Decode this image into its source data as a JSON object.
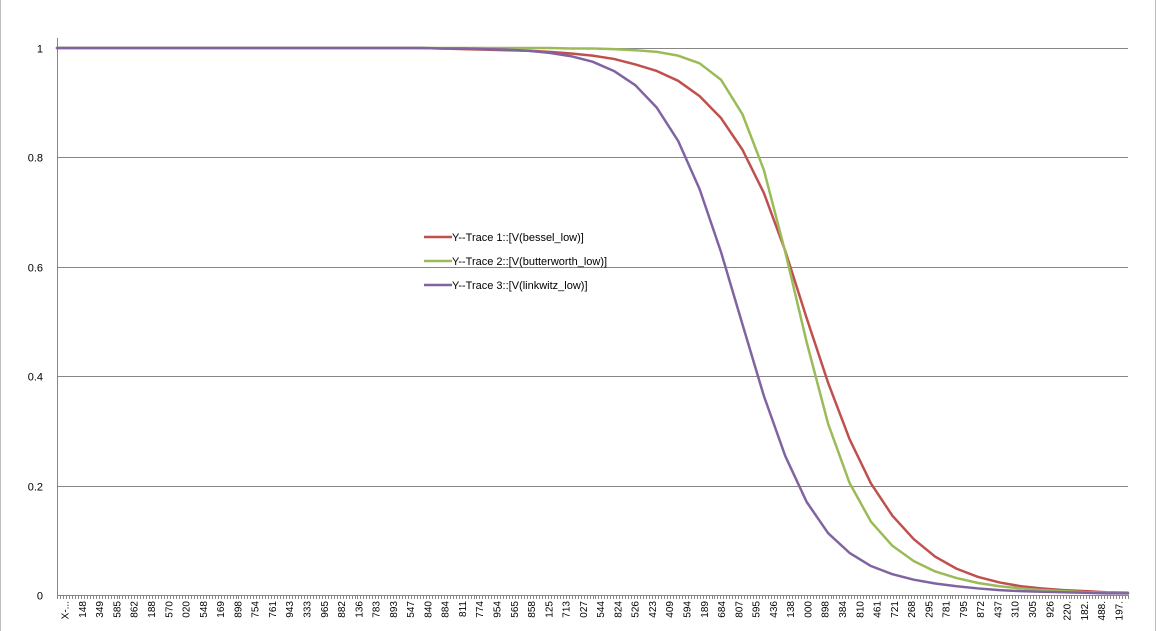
{
  "chart_data": {
    "type": "line",
    "title": "",
    "xlabel": "",
    "ylabel": "",
    "ylim": [
      0,
      1
    ],
    "yticks": [
      0,
      0.2,
      0.4,
      0.6,
      0.8,
      1
    ],
    "ytick_labels": [
      "0",
      "0.2",
      "0.4",
      "0.6",
      "0.8",
      "1"
    ],
    "grid": "horizontal",
    "legend_placement": "center-left",
    "xtick_labels": [
      "X-...",
      "148",
      "349",
      "585",
      "862",
      "188",
      "570",
      "020",
      "548",
      "169",
      "898",
      "754",
      "761",
      "943",
      "333",
      "965",
      "882",
      "136",
      "783",
      "893",
      "547",
      "840",
      "884",
      "811",
      "774",
      "954",
      "565",
      "858",
      "125",
      "713",
      "027",
      "544",
      "824",
      "526",
      "423",
      "409",
      "594",
      "189",
      "684",
      "807",
      "595",
      "436",
      "138",
      "000",
      "898",
      "384",
      "810",
      "461",
      "721",
      "268",
      "295",
      "781",
      "795",
      "872",
      "437",
      "310",
      "305",
      "926",
      "220.",
      "182.",
      "488.",
      "197."
    ],
    "x": [
      0,
      0.02,
      0.04,
      0.06,
      0.08,
      0.1,
      0.12,
      0.14,
      0.16,
      0.18,
      0.2,
      0.22,
      0.24,
      0.26,
      0.28,
      0.3,
      0.32,
      0.34,
      0.36,
      0.38,
      0.4,
      0.42,
      0.44,
      0.46,
      0.48,
      0.5,
      0.52,
      0.54,
      0.56,
      0.58,
      0.6,
      0.62,
      0.64,
      0.66,
      0.68,
      0.7,
      0.72,
      0.74,
      0.76,
      0.78,
      0.8,
      0.82,
      0.84,
      0.86,
      0.88,
      0.9,
      0.92,
      0.94,
      0.96,
      0.98,
      1.0
    ],
    "series": [
      {
        "name": "Y--Trace 1::[V(bessel_low)]",
        "color": "#c0504d",
        "values": [
          1,
          1,
          1,
          1,
          1,
          1,
          1,
          1,
          1,
          1,
          1,
          1,
          1,
          1,
          1,
          1,
          1,
          1,
          0.999,
          0.998,
          0.997,
          0.996,
          0.995,
          0.993,
          0.99,
          0.986,
          0.98,
          0.97,
          0.958,
          0.94,
          0.912,
          0.872,
          0.814,
          0.735,
          0.629,
          0.506,
          0.388,
          0.285,
          0.204,
          0.145,
          0.102,
          0.07,
          0.048,
          0.033,
          0.023,
          0.016,
          0.012,
          0.009,
          0.007,
          0.005,
          0.004
        ]
      },
      {
        "name": "Y--Trace 2::[V(butterworth_low)]",
        "color": "#9bbb59",
        "values": [
          1,
          1,
          1,
          1,
          1,
          1,
          1,
          1,
          1,
          1,
          1,
          1,
          1,
          1,
          1,
          1,
          1,
          1,
          1,
          1,
          1,
          1,
          1,
          1,
          0.999,
          0.999,
          0.998,
          0.996,
          0.993,
          0.986,
          0.972,
          0.942,
          0.879,
          0.777,
          0.627,
          0.462,
          0.313,
          0.205,
          0.134,
          0.09,
          0.062,
          0.043,
          0.031,
          0.022,
          0.016,
          0.012,
          0.009,
          0.007,
          0.005,
          0.004,
          0.003
        ]
      },
      {
        "name": "Y--Trace 3::[V(linkwitz_low)]",
        "color": "#8064a2",
        "values": [
          1,
          1,
          1,
          1,
          1,
          1,
          1,
          1,
          1,
          1,
          1,
          1,
          1,
          1,
          1,
          1,
          1,
          1,
          0.999,
          0.999,
          0.998,
          0.997,
          0.995,
          0.991,
          0.985,
          0.975,
          0.958,
          0.932,
          0.891,
          0.83,
          0.742,
          0.627,
          0.495,
          0.364,
          0.254,
          0.17,
          0.113,
          0.077,
          0.053,
          0.038,
          0.028,
          0.021,
          0.016,
          0.012,
          0.009,
          0.007,
          0.006,
          0.005,
          0.004,
          0.003,
          0.003
        ]
      }
    ]
  }
}
